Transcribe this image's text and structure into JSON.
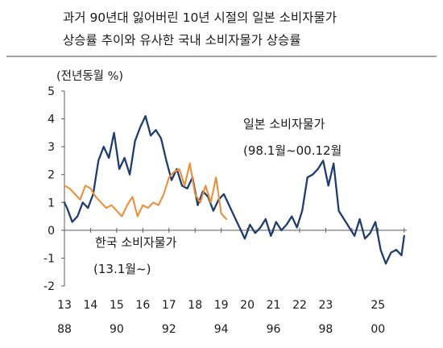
{
  "title_lines": [
    "과거 90년대 잃어버린 10년 시절의 일본 소비자물가",
    "상승률 추이와 유사한 국내 소비자물가 상승률"
  ],
  "chart_data": {
    "type": "line",
    "title": "과거 90년대 잃어버린 10년 시절의 일본 소비자물가 상승률 추이와 유사한 국내 소비자물가 상승률",
    "unit_label": "(전년동월 %)",
    "ylim": [
      -2,
      5
    ],
    "yticks": [
      "5",
      "4",
      "3",
      "2",
      "1",
      "0",
      "-1",
      "-2"
    ],
    "xlim": [
      13,
      26.1
    ],
    "x_ticks_top": [
      "13",
      "14",
      "15",
      "16",
      "17",
      "18",
      "19",
      "20",
      "21",
      "22",
      "23",
      "25"
    ],
    "x_ticks_bottom": [
      "88",
      "90",
      "92",
      "94",
      "96",
      "98",
      "00"
    ],
    "grid": false,
    "legend": "inline annotations",
    "colors": {
      "japan": "#1f3d6e",
      "korea": "#ec8f3a",
      "axis": "#5a5a5a"
    },
    "series": [
      {
        "name": "일본 소비자물가",
        "label_lines": [
          "일본 소비자물가",
          "(98.1월~00.12월"
        ],
        "x": [
          13.0,
          13.1,
          13.3,
          13.5,
          13.7,
          13.9,
          14.1,
          14.3,
          14.5,
          14.7,
          14.9,
          15.1,
          15.3,
          15.5,
          15.7,
          15.9,
          16.1,
          16.3,
          16.5,
          16.7,
          16.9,
          17.1,
          17.3,
          17.5,
          17.7,
          17.9,
          18.1,
          18.3,
          18.5,
          18.7,
          18.9,
          19.1,
          19.3,
          19.5,
          19.7,
          19.9,
          20.1,
          20.3,
          20.5,
          20.7,
          20.9,
          21.1,
          21.3,
          21.5,
          21.7,
          21.9,
          22.1,
          22.3,
          22.5,
          22.7,
          22.9,
          23.1,
          23.3,
          23.5,
          23.7,
          23.9,
          24.1,
          24.3,
          24.5,
          24.7,
          24.9,
          25.1,
          25.3,
          25.5,
          25.7,
          25.9,
          26.0
        ],
        "y": [
          1.0,
          0.8,
          0.3,
          0.5,
          1.0,
          0.8,
          1.3,
          2.5,
          3.0,
          2.6,
          3.5,
          2.2,
          2.6,
          2.0,
          3.2,
          3.7,
          4.1,
          3.4,
          3.6,
          3.3,
          2.5,
          1.8,
          2.2,
          1.6,
          1.5,
          1.9,
          0.9,
          1.4,
          1.2,
          0.7,
          1.1,
          1.3,
          0.9,
          0.5,
          0.1,
          -0.3,
          0.2,
          -0.1,
          0.1,
          0.4,
          -0.2,
          0.3,
          0.0,
          0.2,
          0.5,
          0.1,
          0.7,
          1.9,
          2.0,
          2.2,
          2.5,
          1.6,
          2.4,
          0.7,
          0.4,
          0.1,
          -0.2,
          0.4,
          -0.3,
          -0.1,
          0.3,
          -0.7,
          -1.2,
          -0.8,
          -0.7,
          -0.9,
          -0.2
        ]
      },
      {
        "name": "한국 소비자물가",
        "label_lines": [
          "한국 소비자물가",
          "(13.1월~)"
        ],
        "x": [
          13.0,
          13.2,
          13.4,
          13.6,
          13.8,
          14.0,
          14.2,
          14.4,
          14.6,
          14.8,
          15.0,
          15.2,
          15.4,
          15.6,
          15.8,
          16.0,
          16.2,
          16.4,
          16.6,
          16.8,
          17.0,
          17.2,
          17.4,
          17.6,
          17.8,
          18.0,
          18.2,
          18.4,
          18.6,
          18.8,
          19.0,
          19.2
        ],
        "y": [
          1.6,
          1.5,
          1.3,
          1.1,
          1.6,
          1.5,
          1.2,
          1.0,
          0.8,
          0.9,
          0.7,
          0.5,
          0.9,
          1.2,
          0.5,
          0.9,
          0.8,
          1.0,
          0.9,
          1.3,
          1.9,
          2.1,
          2.2,
          1.6,
          2.4,
          1.3,
          1.0,
          1.6,
          1.0,
          1.9,
          0.6,
          0.4
        ]
      }
    ]
  }
}
